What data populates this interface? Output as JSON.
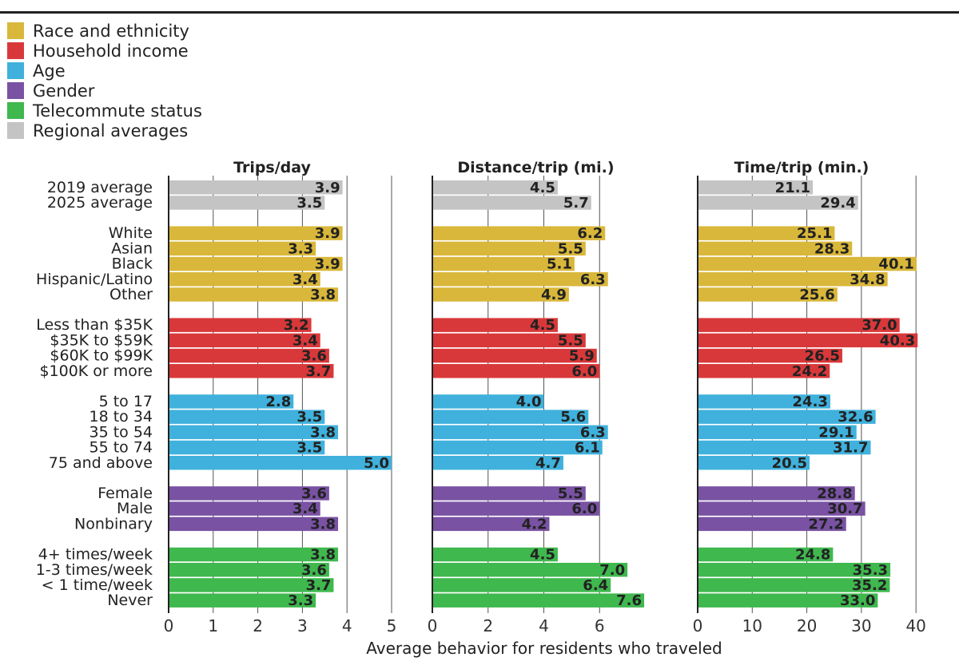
{
  "chart_data": {
    "type": "bar",
    "orientation": "horizontal",
    "xlabel": "Average behavior for residents who traveled",
    "legend": [
      {
        "name": "Race and ethnicity",
        "color": "#d9b73a"
      },
      {
        "name": "Household income",
        "color": "#d9383a"
      },
      {
        "name": "Age",
        "color": "#3fb1dc"
      },
      {
        "name": "Gender",
        "color": "#7952a3"
      },
      {
        "name": "Telecommute status",
        "color": "#3fb84e"
      },
      {
        "name": "Regional averages",
        "color": "#c4c4c4"
      }
    ],
    "groups": [
      {
        "name": "Regional averages",
        "color": "#c4c4c4",
        "categories": [
          "2019 average",
          "2025 average"
        ]
      },
      {
        "name": "Race and ethnicity",
        "color": "#d9b73a",
        "categories": [
          "White",
          "Asian",
          "Black",
          "Hispanic/Latino",
          "Other"
        ]
      },
      {
        "name": "Household income",
        "color": "#d9383a",
        "categories": [
          "Less than $35K",
          "$35K to $59K",
          "$60K to $99K",
          "$100K or more"
        ]
      },
      {
        "name": "Age",
        "color": "#3fb1dc",
        "categories": [
          "5 to 17",
          "18 to 34",
          "35 to 54",
          "55 to 74",
          "75 and above"
        ]
      },
      {
        "name": "Gender",
        "color": "#7952a3",
        "categories": [
          "Female",
          "Male",
          "Nonbinary"
        ]
      },
      {
        "name": "Telecommute status",
        "color": "#3fb84e",
        "categories": [
          "4+ times/week",
          "1-3 times/week",
          "< 1 time/week",
          "Never"
        ]
      }
    ],
    "panels": [
      {
        "title": "Trips/day",
        "xlim": [
          0,
          5
        ],
        "ticks": [
          "0",
          "1",
          "2",
          "3",
          "4",
          "5"
        ],
        "values": [
          [
            "3.9",
            "3.5"
          ],
          [
            "3.9",
            "3.3",
            "3.9",
            "3.4",
            "3.8"
          ],
          [
            "3.2",
            "3.4",
            "3.6",
            "3.7"
          ],
          [
            "2.8",
            "3.5",
            "3.8",
            "3.5",
            "5.0"
          ],
          [
            "3.6",
            "3.4",
            "3.8"
          ],
          [
            "3.8",
            "3.6",
            "3.7",
            "3.3"
          ]
        ]
      },
      {
        "title": "Distance/trip (mi.)",
        "xlim": [
          0,
          8
        ],
        "ticks": [
          "0",
          "2",
          "4",
          "6"
        ],
        "values": [
          [
            "4.5",
            "5.7"
          ],
          [
            "6.2",
            "5.5",
            "5.1",
            "6.3",
            "4.9"
          ],
          [
            "4.5",
            "5.5",
            "5.9",
            "6.0"
          ],
          [
            "4.0",
            "5.6",
            "6.3",
            "6.1",
            "4.7"
          ],
          [
            "5.5",
            "6.0",
            "4.2"
          ],
          [
            "4.5",
            "7.0",
            "6.4",
            "7.6"
          ]
        ]
      },
      {
        "title": "Time/trip (min.)",
        "xlim": [
          0,
          41
        ],
        "ticks": [
          "0",
          "10",
          "20",
          "30",
          "40"
        ],
        "values": [
          [
            "21.1",
            "29.4"
          ],
          [
            "25.1",
            "28.3",
            "40.1",
            "34.8",
            "25.6"
          ],
          [
            "37.0",
            "40.3",
            "26.5",
            "24.2"
          ],
          [
            "24.3",
            "32.6",
            "29.1",
            "31.7",
            "20.5"
          ],
          [
            "28.8",
            "30.7",
            "27.2"
          ],
          [
            "24.8",
            "35.3",
            "35.2",
            "33.0"
          ]
        ]
      }
    ]
  }
}
